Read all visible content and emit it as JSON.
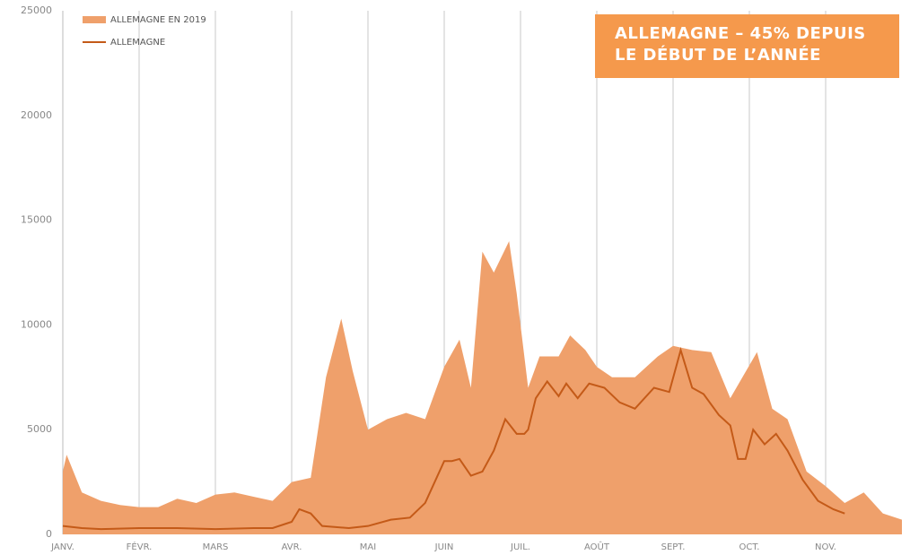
{
  "chart_data": {
    "type": "area-line",
    "annotation": "ALLEMAGNE – 45% DEPUIS LE DÉBUT DE L’ANNÉE",
    "xlim": [
      0,
      11
    ],
    "xticks": [
      {
        "value": 0,
        "label": "JANV."
      },
      {
        "value": 1,
        "label": "FÉVR."
      },
      {
        "value": 2,
        "label": "MARS"
      },
      {
        "value": 3,
        "label": "AVR."
      },
      {
        "value": 4,
        "label": "MAI"
      },
      {
        "value": 5,
        "label": "JUIN"
      },
      {
        "value": 6,
        "label": "JUIL."
      },
      {
        "value": 7,
        "label": "AOÛT"
      },
      {
        "value": 8,
        "label": "SEPT."
      },
      {
        "value": 9,
        "label": "OCT."
      },
      {
        "value": 10,
        "label": "NOV."
      }
    ],
    "ylim": [
      0,
      25000
    ],
    "yticks": [
      0,
      5000,
      10000,
      15000,
      20000,
      25000
    ],
    "grid": true,
    "series": [
      {
        "name": "ALLEMAGNE EN 2019",
        "kind": "area",
        "color": "#efa06b",
        "x": [
          0,
          0.05,
          0.25,
          0.5,
          0.75,
          1,
          1.25,
          1.5,
          1.75,
          2,
          2.25,
          2.5,
          2.75,
          3,
          3.25,
          3.45,
          3.65,
          3.8,
          4,
          4.25,
          4.5,
          4.75,
          5,
          5.2,
          5.35,
          5.5,
          5.65,
          5.85,
          5.95,
          6.1,
          6.25,
          6.5,
          6.65,
          6.85,
          7,
          7.2,
          7.5,
          7.8,
          8,
          8.25,
          8.5,
          8.75,
          9.1,
          9.3,
          9.5,
          9.75,
          10,
          10.25,
          10.5,
          10.75,
          11
        ],
        "values": [
          3000,
          3800,
          2000,
          1600,
          1400,
          1300,
          1300,
          1700,
          1500,
          1900,
          2000,
          1800,
          1600,
          2500,
          2700,
          7500,
          10300,
          7800,
          5000,
          5500,
          5800,
          5500,
          8000,
          9300,
          7000,
          13500,
          12500,
          14000,
          11500,
          7000,
          8500,
          8500,
          9500,
          8800,
          8000,
          7500,
          7500,
          8500,
          9000,
          8800,
          8700,
          6500,
          8700,
          6000,
          5500,
          3000,
          2300,
          1500,
          2000,
          1000,
          700
        ]
      },
      {
        "name": "ALLEMAGNE",
        "kind": "line",
        "color": "#c45a18",
        "x": [
          0,
          0.25,
          0.5,
          1,
          1.5,
          2,
          2.5,
          2.75,
          3,
          3.1,
          3.25,
          3.4,
          3.75,
          4,
          4.3,
          4.55,
          4.75,
          4.9,
          5,
          5.1,
          5.2,
          5.35,
          5.5,
          5.65,
          5.8,
          5.95,
          6.05,
          6.1,
          6.2,
          6.35,
          6.5,
          6.6,
          6.75,
          6.9,
          7.1,
          7.3,
          7.5,
          7.75,
          7.95,
          8.1,
          8.25,
          8.4,
          8.6,
          8.75,
          8.85,
          8.95,
          9.05,
          9.2,
          9.35,
          9.5,
          9.7,
          9.9,
          10.1,
          10.25
        ],
        "values": [
          400,
          300,
          250,
          300,
          300,
          250,
          300,
          300,
          600,
          1200,
          1000,
          400,
          300,
          400,
          700,
          800,
          1500,
          2700,
          3500,
          3500,
          3600,
          2800,
          3000,
          4000,
          5500,
          4800,
          4800,
          5000,
          6500,
          7300,
          6600,
          7200,
          6500,
          7200,
          7000,
          6300,
          6000,
          7000,
          6800,
          8800,
          7000,
          6700,
          5700,
          5200,
          3600,
          3600,
          5000,
          4300,
          4800,
          4000,
          2600,
          1600,
          1200,
          1000
        ]
      }
    ]
  }
}
